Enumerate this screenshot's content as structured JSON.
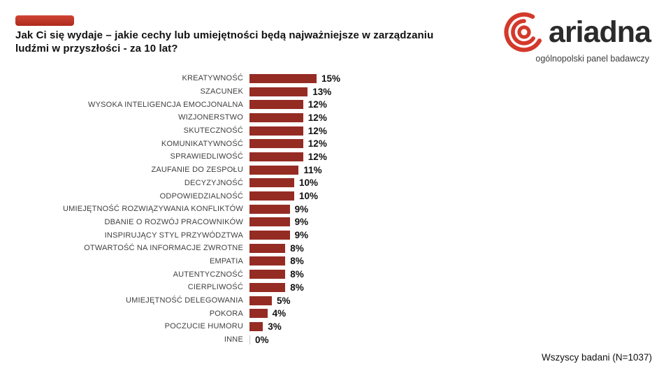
{
  "brand": {
    "accent_color": "#c0392b",
    "bar_color": "#952c24",
    "logo_red": "#d3392b"
  },
  "header": {
    "title_lines": [
      "Jak Ci się wydaje – jakie cechy lub umiejętności będą najważniejsze w zarządzaniu",
      "ludźmi w przyszłości - za 10 lat?"
    ]
  },
  "logo": {
    "name": "ariadna",
    "tagline": "ogólnopolski panel badawczy"
  },
  "footer": {
    "note": "Wszyscy badani (N=1037)"
  },
  "chart_data": {
    "type": "bar",
    "orientation": "horizontal",
    "title": "Jak Ci się wydaje – jakie cechy lub umiejętności będą najważniejsze w zarządzaniu ludźmi w przyszłości - za 10 lat?",
    "categories": [
      "KREATYWNOŚĆ",
      "SZACUNEK",
      "WYSOKA INTELIGENCJA EMOCJONALNA",
      "WIZJONERSTWO",
      "SKUTECZNOŚĆ",
      "KOMUNIKATYWNOŚĆ",
      "SPRAWIEDLIWOŚĆ",
      "ZAUFANIE DO ZESPOŁU",
      "DECYZYJNOŚĆ",
      "ODPOWIEDZIALNOŚĆ",
      "UMIEJĘTNOŚĆ ROZWIĄZYWANIA KONFLIKTÓW",
      "DBANIE O ROZWÓJ PRACOWNIKÓW",
      "INSPIRUJĄCY STYL PRZYWÓDZTWA",
      "OTWARTOŚĆ NA INFORMACJE ZWROTNE",
      "EMPATIA",
      "AUTENTYCZNOŚĆ",
      "CIERPLIWOŚĆ",
      "UMIEJĘTNOŚĆ DELEGOWANIA",
      "POKORA",
      "POCZUCIE HUMORU",
      "INNE"
    ],
    "values": [
      15,
      13,
      12,
      12,
      12,
      12,
      12,
      11,
      10,
      10,
      9,
      9,
      9,
      8,
      8,
      8,
      8,
      5,
      4,
      3,
      0
    ],
    "value_suffix": "%",
    "xlim": [
      0,
      15
    ],
    "bar_color": "#952c24",
    "grid": false,
    "legend": false,
    "data_labels": true,
    "footnote": "Wszyscy badani (N=1037)"
  }
}
